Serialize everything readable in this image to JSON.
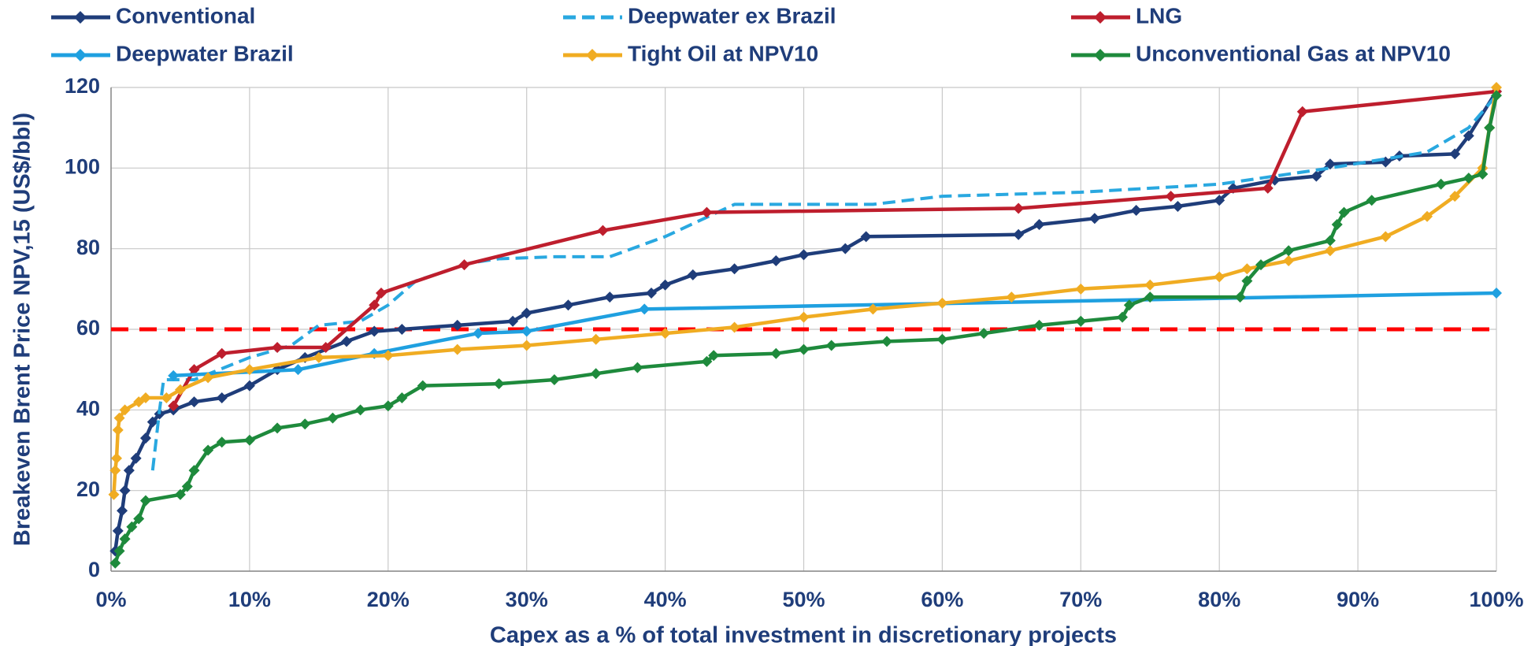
{
  "chart_data": {
    "type": "line",
    "xlabel": "Capex as a % of total investment in discretionary projects",
    "ylabel": "Breakeven Brent Price NPV,15 (US$/bbl)",
    "xlim": [
      0,
      100
    ],
    "ylim": [
      0,
      120
    ],
    "xticks": [
      {
        "value": 0,
        "label": "0%"
      },
      {
        "value": 10,
        "label": "10%"
      },
      {
        "value": 20,
        "label": "20%"
      },
      {
        "value": 30,
        "label": "30%"
      },
      {
        "value": 40,
        "label": "40%"
      },
      {
        "value": 50,
        "label": "50%"
      },
      {
        "value": 60,
        "label": "60%"
      },
      {
        "value": 70,
        "label": "70%"
      },
      {
        "value": 80,
        "label": "80%"
      },
      {
        "value": 90,
        "label": "90%"
      },
      {
        "value": 100,
        "label": "100%"
      }
    ],
    "yticks": [
      0,
      20,
      40,
      60,
      80,
      100,
      120
    ],
    "grid": true,
    "legend": "top",
    "hlines": [
      {
        "value": 60,
        "color": "#ff0000",
        "dash": true
      }
    ],
    "series": [
      {
        "name": "Conventional",
        "color": "#1f3d7a",
        "markers": true,
        "dash": false,
        "x": [
          0.3,
          0.5,
          0.8,
          1,
          1.3,
          1.8,
          2.5,
          3,
          3.5,
          4.5,
          6,
          8,
          10,
          12,
          14,
          17,
          19,
          21,
          25,
          29,
          30,
          33,
          36,
          39,
          40,
          42,
          45,
          48,
          50,
          53,
          54.5,
          65.5,
          67,
          71,
          74,
          77,
          80,
          81,
          84,
          87,
          88,
          92,
          93,
          97,
          98,
          100
        ],
        "values": [
          5,
          10,
          15,
          20,
          25,
          28,
          33,
          37,
          39,
          40,
          42,
          43,
          46,
          50,
          53,
          57,
          59.5,
          60,
          61,
          62,
          64,
          66,
          68,
          69,
          71,
          73.5,
          75,
          77,
          78.5,
          80,
          83,
          83.5,
          86,
          87.5,
          89.5,
          90.5,
          92,
          95,
          97,
          98,
          101,
          101.5,
          103,
          103.5,
          108,
          119
        ]
      },
      {
        "name": "Deepwater ex Brazil",
        "color": "#29a8e0",
        "markers": false,
        "dash": true,
        "x": [
          3,
          3.5,
          3.8,
          6,
          10,
          13,
          15,
          18,
          20,
          22,
          26,
          28,
          32,
          36,
          40,
          45,
          55,
          60,
          70,
          80,
          88,
          95,
          98,
          100
        ],
        "values": [
          25,
          40,
          47.5,
          47.5,
          53,
          56,
          61,
          62,
          66,
          72,
          76.5,
          77.5,
          78,
          78,
          83,
          91,
          91,
          93,
          94,
          96,
          100,
          104,
          110,
          118
        ]
      },
      {
        "name": "LNG",
        "color": "#be1e2d",
        "markers": true,
        "dash": false,
        "x": [
          4.5,
          6,
          8,
          12,
          15.5,
          19,
          19.5,
          25.5,
          35.5,
          43,
          65.5,
          76.5,
          83.5,
          86,
          100
        ],
        "values": [
          41,
          50,
          54,
          55.5,
          55.5,
          66,
          69,
          76,
          84.5,
          89,
          90,
          93,
          95,
          114,
          119
        ]
      },
      {
        "name": "Deepwater Brazil",
        "color": "#1fa0e0",
        "markers": true,
        "dash": false,
        "x": [
          4.5,
          13.5,
          19,
          26.5,
          30,
          38.5,
          100
        ],
        "values": [
          48.5,
          50,
          54,
          59,
          59.5,
          65,
          69
        ]
      },
      {
        "name": "Tight Oil at NPV10",
        "color": "#f0ac22",
        "markers": true,
        "dash": false,
        "x": [
          0.2,
          0.3,
          0.4,
          0.5,
          0.6,
          1,
          2,
          2.5,
          4,
          5,
          7,
          10,
          15,
          20,
          25,
          30,
          35,
          40,
          45,
          50,
          55,
          60,
          65,
          70,
          75,
          80,
          82,
          85,
          88,
          92,
          95,
          97,
          99,
          99.5,
          100
        ],
        "values": [
          19,
          25,
          28,
          35,
          38,
          40,
          42,
          43,
          43,
          45,
          48,
          50,
          53,
          53.5,
          55,
          56,
          57.5,
          59,
          60.5,
          63,
          65,
          66.5,
          68,
          70,
          71,
          73,
          75,
          77,
          79.5,
          83,
          88,
          93,
          100,
          110,
          120
        ]
      },
      {
        "name": "Unconventional Gas at NPV10",
        "color": "#1e8a3c",
        "markers": true,
        "dash": false,
        "x": [
          0.3,
          0.6,
          1,
          1.5,
          2,
          2.5,
          5,
          5.5,
          6,
          7,
          8,
          10,
          12,
          14,
          16,
          18,
          20,
          21,
          22.5,
          28,
          32,
          35,
          38,
          43,
          43.5,
          48,
          50,
          52,
          56,
          60,
          63,
          67,
          70,
          73,
          73.5,
          75,
          81.5,
          82,
          83,
          85,
          88,
          88.5,
          89,
          91,
          96,
          98,
          99,
          99.5,
          100
        ],
        "values": [
          2,
          5,
          8,
          11,
          13,
          17.5,
          19,
          21,
          25,
          30,
          32,
          32.5,
          35.5,
          36.5,
          38,
          40,
          41,
          43,
          46,
          46.5,
          47.5,
          49,
          50.5,
          52,
          53.5,
          54,
          55,
          56,
          57,
          57.5,
          59,
          61,
          62,
          63,
          66,
          68,
          68,
          72,
          76,
          79.5,
          82,
          86,
          89,
          92,
          96,
          97.5,
          98.5,
          110,
          118
        ]
      }
    ]
  }
}
